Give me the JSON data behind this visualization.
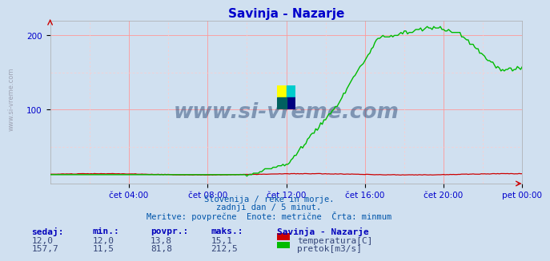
{
  "title": "Savinja - Nazarje",
  "bg_color": "#d0e0f0",
  "plot_bg_color": "#d0e0f0",
  "grid_color_major": "#ff9999",
  "grid_color_minor": "#ffcccc",
  "title_color": "#0000cc",
  "tick_color": "#0000cc",
  "text_color": "#0055aa",
  "xlim": [
    0,
    288
  ],
  "ylim": [
    0,
    220
  ],
  "yticks": [
    100,
    200
  ],
  "xtick_labels": [
    "čet 04:00",
    "čet 08:00",
    "čet 12:00",
    "čet 16:00",
    "čet 20:00",
    "pet 00:00"
  ],
  "xtick_positions": [
    48,
    96,
    144,
    192,
    240,
    288
  ],
  "subtitle_line1": "Slovenija / reke in morje.",
  "subtitle_line2": "zadnji dan / 5 minut.",
  "subtitle_line3": "Meritve: povprečne  Enote: metrične  Črta: minmum",
  "table_headers": [
    "sedaj:",
    "min.:",
    "povpr.:",
    "maks.:"
  ],
  "table_row1": [
    "12,0",
    "12,0",
    "13,8",
    "15,1"
  ],
  "table_row2": [
    "157,7",
    "11,5",
    "81,8",
    "212,5"
  ],
  "legend_title": "Savinja - Nazarje",
  "legend_items": [
    "temperatura[C]",
    "pretok[m3/s]"
  ],
  "legend_colors": [
    "#cc0000",
    "#00bb00"
  ],
  "temp_color": "#cc0000",
  "flow_color": "#00bb00",
  "watermark": "www.si-vreme.com",
  "watermark_color": "#1a3a6a"
}
